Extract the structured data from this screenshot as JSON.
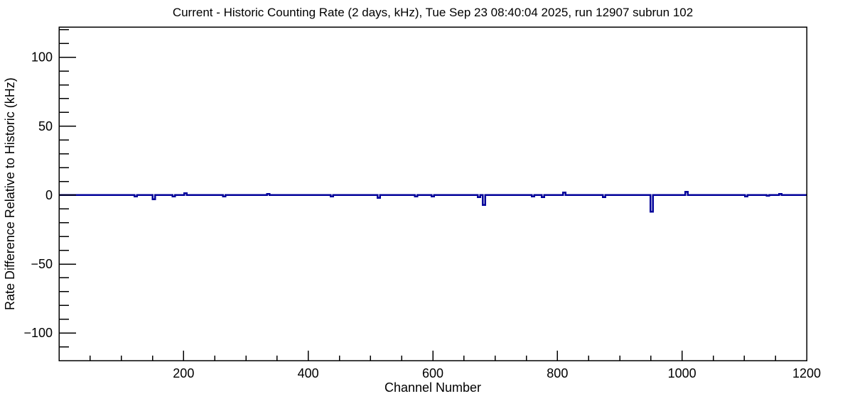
{
  "chart_data": {
    "type": "line",
    "title": "Current - Historic Counting Rate (2 days, kHz), Tue Sep 23 08:40:04 2025, run 12907 subrun 102",
    "xlabel": "Channel Number",
    "ylabel": "Rate Difference Relative to Historic (kHz)",
    "xlim": [
      0,
      1200
    ],
    "ylim": [
      -120,
      122
    ],
    "x_major_ticks": [
      {
        "value": 200,
        "label": "200"
      },
      {
        "value": 400,
        "label": "400"
      },
      {
        "value": 600,
        "label": "600"
      },
      {
        "value": 800,
        "label": "800"
      },
      {
        "value": 1000,
        "label": "1000"
      },
      {
        "value": 1200,
        "label": "1200"
      }
    ],
    "x_minor_step": 50,
    "y_major_ticks": [
      {
        "value": 100,
        "label": "100"
      },
      {
        "value": 50,
        "label": "50"
      },
      {
        "value": 0,
        "label": "0"
      },
      {
        "value": -50,
        "label": "−50"
      },
      {
        "value": -100,
        "label": "−100"
      }
    ],
    "y_minor_step": 10,
    "grid": false,
    "legend": "none",
    "line_color": "#00009a",
    "axis_color": "#000000",
    "background_color": "#ffffff",
    "baseline": 0,
    "series": [
      {
        "name": "current-minus-historic-rate",
        "spikes": [
          {
            "channel": 123,
            "value": -1
          },
          {
            "channel": 152,
            "value": -3
          },
          {
            "channel": 184,
            "value": -1
          },
          {
            "channel": 203,
            "value": 1.5
          },
          {
            "channel": 265,
            "value": -1
          },
          {
            "channel": 336,
            "value": 1
          },
          {
            "channel": 438,
            "value": -1
          },
          {
            "channel": 513,
            "value": -2
          },
          {
            "channel": 573,
            "value": -1
          },
          {
            "channel": 600,
            "value": -1
          },
          {
            "channel": 674,
            "value": -1.5
          },
          {
            "channel": 682,
            "value": -7
          },
          {
            "channel": 761,
            "value": -1
          },
          {
            "channel": 777,
            "value": -1.5
          },
          {
            "channel": 811,
            "value": 2
          },
          {
            "channel": 875,
            "value": -1.5
          },
          {
            "channel": 951,
            "value": -12
          },
          {
            "channel": 1007,
            "value": 2.5
          },
          {
            "channel": 1103,
            "value": -1
          },
          {
            "channel": 1138,
            "value": -0.5
          },
          {
            "channel": 1158,
            "value": 1
          }
        ]
      }
    ]
  }
}
